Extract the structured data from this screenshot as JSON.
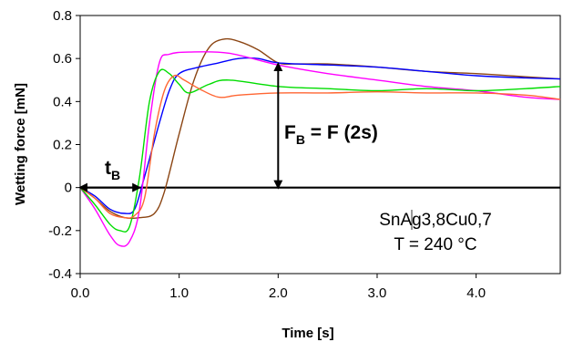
{
  "chart_data": {
    "type": "line",
    "title": "",
    "xlabel": "Time [s]",
    "ylabel": "Wetting force  [mN]",
    "xlim": [
      0,
      4.85
    ],
    "ylim": [
      -0.4,
      0.8
    ],
    "x_ticks": [
      "0.0",
      "1.0",
      "2.0",
      "3.0",
      "4.0"
    ],
    "y_ticks": [
      "-0.4",
      "-0.2",
      "0",
      "0.2",
      "0.4",
      "0.6",
      "0.8"
    ],
    "grid": false,
    "legend": "none",
    "series": [
      {
        "color": "#8B4513",
        "x": [
          0,
          0.15,
          0.3,
          0.45,
          0.6,
          0.75,
          0.85,
          1.0,
          1.15,
          1.3,
          1.45,
          1.6,
          1.8,
          2.0,
          2.2,
          2.5,
          3.0,
          3.5,
          4.0,
          4.5,
          4.85
        ],
        "y": [
          0,
          -0.05,
          -0.11,
          -0.14,
          -0.14,
          -0.12,
          -0.02,
          0.25,
          0.5,
          0.65,
          0.69,
          0.68,
          0.64,
          0.58,
          0.575,
          0.575,
          0.56,
          0.54,
          0.53,
          0.515,
          0.505
        ]
      },
      {
        "color": "#0000FF",
        "x": [
          0,
          0.15,
          0.3,
          0.45,
          0.55,
          0.65,
          0.8,
          0.9,
          1.0,
          1.2,
          1.4,
          1.6,
          1.8,
          2.0,
          2.5,
          3.0,
          3.5,
          4.0,
          4.5,
          4.85
        ],
        "y": [
          0,
          -0.04,
          -0.1,
          -0.12,
          -0.1,
          0.05,
          0.3,
          0.45,
          0.53,
          0.56,
          0.58,
          0.6,
          0.6,
          0.58,
          0.57,
          0.56,
          0.54,
          0.52,
          0.51,
          0.505
        ]
      },
      {
        "color": "#FF00FF",
        "x": [
          0,
          0.15,
          0.3,
          0.4,
          0.5,
          0.6,
          0.7,
          0.8,
          0.9,
          1.1,
          1.5,
          2.0,
          2.5,
          3.0,
          3.5,
          4.0,
          4.5,
          4.85
        ],
        "y": [
          0,
          -0.1,
          -0.22,
          -0.27,
          -0.25,
          -0.1,
          0.3,
          0.58,
          0.62,
          0.63,
          0.625,
          0.57,
          0.53,
          0.5,
          0.47,
          0.45,
          0.42,
          0.41
        ]
      },
      {
        "color": "#00DD00",
        "x": [
          0,
          0.15,
          0.3,
          0.4,
          0.5,
          0.6,
          0.7,
          0.8,
          0.9,
          1.0,
          1.1,
          1.3,
          1.5,
          2.0,
          2.5,
          3.0,
          3.5,
          4.0,
          4.5,
          4.85
        ],
        "y": [
          0,
          -0.08,
          -0.17,
          -0.2,
          -0.18,
          0.05,
          0.4,
          0.54,
          0.53,
          0.48,
          0.44,
          0.48,
          0.5,
          0.47,
          0.46,
          0.45,
          0.46,
          0.45,
          0.46,
          0.47
        ]
      },
      {
        "color": "#FF6633",
        "x": [
          0,
          0.15,
          0.3,
          0.45,
          0.55,
          0.65,
          0.75,
          0.85,
          0.95,
          1.05,
          1.2,
          1.4,
          1.6,
          2.0,
          2.5,
          3.0,
          3.5,
          4.0,
          4.5,
          4.85
        ],
        "y": [
          0,
          -0.05,
          -0.12,
          -0.14,
          -0.13,
          -0.05,
          0.25,
          0.45,
          0.52,
          0.5,
          0.46,
          0.42,
          0.43,
          0.44,
          0.44,
          0.445,
          0.44,
          0.44,
          0.43,
          0.41
        ]
      }
    ],
    "annotations": {
      "fb_formula_main": "F",
      "fb_formula_sub": "B",
      "fb_formula_rest": " = F (2s)",
      "tb_main": "t",
      "tb_sub": "B",
      "alloy": "SnAg3,8Cu0,7",
      "temperature": "T = 240 °C",
      "fb_arrow_x": 2.0,
      "fb_arrow_y_top": 0.575,
      "fb_arrow_y_bottom": 0,
      "tb_arrow_x_start": 0,
      "tb_arrow_x_end": 0.6
    }
  }
}
